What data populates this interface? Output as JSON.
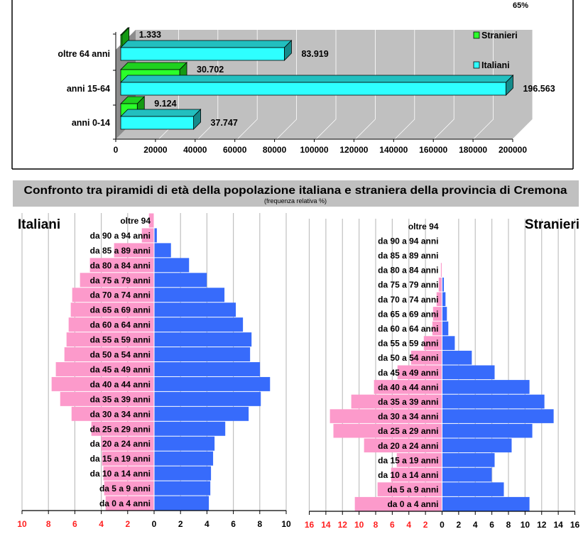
{
  "top_fragment": "65%",
  "section_title": "Confronto tra piramidi di età della popolazione italiana e straniera della provincia di Cremona",
  "section_subtitle": "(frequenza relativa %)",
  "colors": {
    "italiani_bar": "#2effff",
    "stranieri_bar": "#2aff2a",
    "left_bars": "#fc9acb",
    "right_bars": "#376bfb",
    "neg_tick": "#ff2020",
    "band": "#c0c0c0"
  },
  "chart_data": [
    {
      "type": "bar",
      "orientation": "horizontal",
      "style": "3d-clustered",
      "categories": [
        "anni 0-14",
        "anni 15-64",
        "oltre 64 anni"
      ],
      "series": [
        {
          "name": "Stranieri",
          "values": [
            9124,
            30702,
            1333
          ],
          "labels": [
            "9.124",
            "30.702",
            "1.333"
          ]
        },
        {
          "name": "Italiani",
          "values": [
            37747,
            196563,
            83919
          ],
          "labels": [
            "37.747",
            "196.563",
            "83.919"
          ]
        }
      ],
      "xlim": [
        0,
        200000
      ],
      "xticks": [
        "0",
        "20000",
        "40000",
        "60000",
        "80000",
        "100000",
        "120000",
        "140000",
        "160000",
        "180000",
        "200000"
      ],
      "grid": true,
      "legend": "right"
    },
    {
      "type": "bar",
      "orientation": "horizontal",
      "style": "population-pyramid",
      "title": "Italiani",
      "categories": [
        "oltre 94",
        "da 90 a 94 anni",
        "da 85 a 89 anni",
        "da 80 a 84 anni",
        "da 75 a 79 anni",
        "da 70 a 74 anni",
        "da 65 a 69 anni",
        "da 60 a 64 anni",
        "da 55 a 59 anni",
        "da 50 a 54 anni",
        "da 45 a 49 anni",
        "da 40 a 44 anni",
        "da 35 a 39 anni",
        "da 30 a 34 anni",
        "da 25 a 29 anni",
        "da 20 a 24 anni",
        "da 15 a 19 anni",
        "da 10 a 14 anni",
        "da 5 a 9 anni",
        "da 0 a 4 anni"
      ],
      "series": [
        {
          "side": "left",
          "values": [
            0.39,
            0.93,
            3.03,
            4.86,
            5.61,
            6.2,
            6.31,
            6.47,
            6.63,
            6.79,
            7.44,
            7.76,
            7.11,
            6.25,
            4.75,
            4.0,
            3.94,
            3.84,
            3.78,
            3.67
          ]
        },
        {
          "side": "right",
          "values": [
            0.0,
            0.18,
            1.25,
            2.62,
            3.96,
            5.3,
            6.16,
            6.7,
            7.35,
            7.24,
            7.99,
            8.75,
            8.05,
            7.13,
            5.36,
            4.55,
            4.44,
            4.28,
            4.23,
            4.12
          ]
        }
      ],
      "xlim": [
        -10,
        10
      ],
      "xticks": [
        "10",
        "8",
        "6",
        "4",
        "2",
        "0",
        "2",
        "4",
        "6",
        "8",
        "10"
      ],
      "grid": true
    },
    {
      "type": "bar",
      "orientation": "horizontal",
      "style": "population-pyramid",
      "title": "Stranieri",
      "categories": [
        "oltre 94",
        "da 90 a 94 anni",
        "da 85 a 89 anni",
        "da 80 a 84 anni",
        "da 75 a 79 anni",
        "da 70 a 74 anni",
        "da 65 a 69 anni",
        "da 60 a 64 anni",
        "da 55 a 59 anni",
        "da 50 a 54 anni",
        "da 45 a 49 anni",
        "da 40 a 44 anni",
        "da 35 a 39 anni",
        "da 30 a 34 anni",
        "da 25 a 29 anni",
        "da 20 a 24 anni",
        "da 15 a 19 anni",
        "da 10 a 14 anni",
        "da 5 a 9 anni",
        "da 0 a 4 anni"
      ],
      "series": [
        {
          "side": "left",
          "values": [
            0,
            0,
            0,
            0.14,
            0.4,
            0.66,
            1.09,
            1.17,
            2.2,
            3.74,
            5.37,
            8.2,
            10.94,
            13.51,
            13.09,
            9.4,
            5.46,
            6.14,
            7.77,
            10.51
          ]
        },
        {
          "side": "right",
          "values": [
            0,
            0,
            0,
            0,
            0.17,
            0.37,
            0.54,
            0.71,
            1.49,
            3.54,
            6.29,
            10.49,
            12.29,
            13.4,
            10.83,
            8.34,
            6.29,
            5.94,
            7.4,
            10.49
          ]
        }
      ],
      "xlim": [
        -16,
        16
      ],
      "xticks": [
        "16",
        "14",
        "12",
        "10",
        "8",
        "6",
        "4",
        "2",
        "0",
        "2",
        "4",
        "6",
        "8",
        "10",
        "12",
        "14",
        "16"
      ],
      "grid": true
    }
  ]
}
